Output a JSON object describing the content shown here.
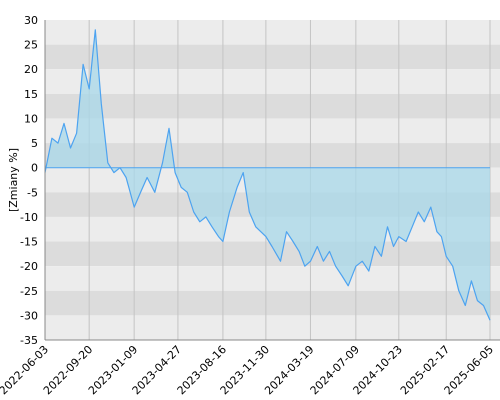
{
  "chart_data": {
    "type": "area",
    "title": "",
    "xlabel": "",
    "ylabel": "[Zmiany %]",
    "ylim": [
      -35,
      30
    ],
    "yticks": [
      30,
      25,
      20,
      15,
      10,
      5,
      0,
      -5,
      -10,
      -15,
      -20,
      -25,
      -30,
      -35
    ],
    "xticks": [
      "2022-06-03",
      "2022-09-20",
      "2023-01-09",
      "2023-04-27",
      "2023-08-16",
      "2023-11-30",
      "2024-03-19",
      "2024-07-09",
      "2024-10-23",
      "2025-02-17",
      "2025-06-05"
    ],
    "grid": true,
    "colors": {
      "line": "#4da3f0",
      "fill": "#a8d8ea",
      "band_light": "#ececec",
      "band_dark": "#dcdcdc",
      "gridline": "#c4c4c4",
      "axis": "#888888"
    },
    "series": [
      {
        "x": [
          "2022-06-03",
          "2022-06-20",
          "2022-07-05",
          "2022-07-20",
          "2022-08-05",
          "2022-08-20",
          "2022-09-05",
          "2022-09-20",
          "2022-10-05",
          "2022-10-20",
          "2022-11-05",
          "2022-11-20",
          "2022-12-05",
          "2022-12-20",
          "2023-01-09",
          "2023-01-25",
          "2023-02-10",
          "2023-03-01",
          "2023-03-20",
          "2023-04-05",
          "2023-04-20",
          "2023-05-05",
          "2023-05-20",
          "2023-06-05",
          "2023-06-20",
          "2023-07-05",
          "2023-07-20",
          "2023-08-05",
          "2023-08-16",
          "2023-09-01",
          "2023-09-20",
          "2023-10-05",
          "2023-10-20",
          "2023-11-05",
          "2023-11-30",
          "2023-12-15",
          "2024-01-05",
          "2024-01-20",
          "2024-02-05",
          "2024-02-20",
          "2024-03-05",
          "2024-03-19",
          "2024-04-05",
          "2024-04-20",
          "2024-05-05",
          "2024-05-20",
          "2024-06-05",
          "2024-06-20",
          "2024-07-09",
          "2024-07-25",
          "2024-08-10",
          "2024-08-25",
          "2024-09-10",
          "2024-09-25",
          "2024-10-10",
          "2024-10-23",
          "2024-11-10",
          "2024-11-25",
          "2024-12-10",
          "2024-12-25",
          "2025-01-10",
          "2025-01-25",
          "2025-02-05",
          "2025-02-17",
          "2025-03-05",
          "2025-03-20",
          "2025-04-05",
          "2025-04-20",
          "2025-05-05",
          "2025-05-20",
          "2025-06-05"
        ],
        "values": [
          -1,
          6,
          5,
          9,
          4,
          7,
          21,
          16,
          28,
          13,
          1,
          -1,
          0,
          -2,
          -8,
          -5,
          -2,
          -5,
          1,
          8,
          -1,
          -4,
          -5,
          -9,
          -11,
          -10,
          -12,
          -14,
          -15,
          -9,
          -4,
          -1,
          -9,
          -12,
          -14,
          -16,
          -19,
          -13,
          -15,
          -17,
          -20,
          -19,
          -16,
          -19,
          -17,
          -20,
          -22,
          -24,
          -20,
          -19,
          -21,
          -16,
          -18,
          -12,
          -16,
          -14,
          -15,
          -12,
          -9,
          -11,
          -8,
          -13,
          -14,
          -18,
          -20,
          -25,
          -28,
          -23,
          -27,
          -28,
          -31
        ]
      }
    ]
  }
}
